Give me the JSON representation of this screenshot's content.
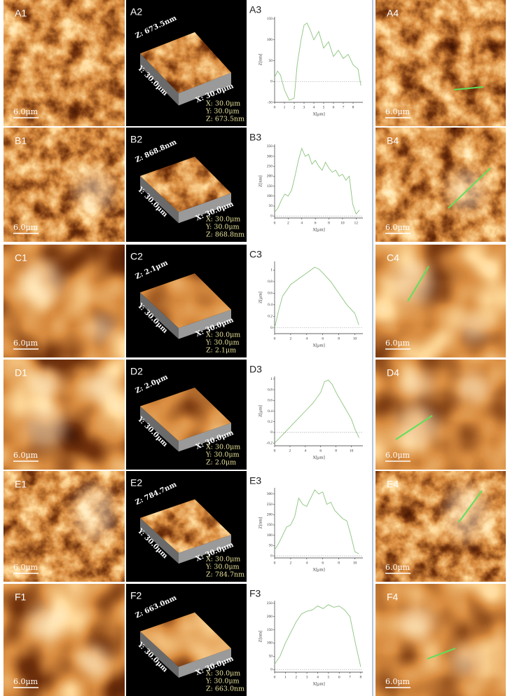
{
  "rows": [
    {
      "labels": [
        "A1",
        "A2",
        "A3",
        "A4"
      ],
      "scale_bar": "6.0μm",
      "z_axis": "Z: 673.5nm",
      "y_axis": "Y: 30.0μm",
      "x_axis": "X: 30.0μm",
      "readout": [
        "X: 30.0μm",
        "Y: 30.0μm",
        "Z: 673.5nm"
      ]
    },
    {
      "labels": [
        "B1",
        "B2",
        "B3",
        "B4"
      ],
      "scale_bar": "6.0μm",
      "z_axis": "Z: 868.8nm",
      "y_axis": "Y: 30.0μm",
      "x_axis": "X: 30.0μm",
      "readout": [
        "X: 30.0μm",
        "Y: 30.0μm",
        "Z: 868.8nm"
      ]
    },
    {
      "labels": [
        "C1",
        "C2",
        "C3",
        "C4"
      ],
      "scale_bar": "6.0μm",
      "z_axis": "Z: 2.1μm",
      "y_axis": "Y: 30.0μm",
      "x_axis": "X: 30.0μm",
      "readout": [
        "X: 30.0μm",
        "Y: 30.0μm",
        "Z: 2.1μm"
      ]
    },
    {
      "labels": [
        "D1",
        "D2",
        "D3",
        "D4"
      ],
      "scale_bar": "6.0μm",
      "z_axis": "Z: 2.0μm",
      "y_axis": "Y: 30.0μm",
      "x_axis": "X: 30.0μm",
      "readout": [
        "X: 30.0μm",
        "Y: 30.0μm",
        "Z: 2.0μm"
      ]
    },
    {
      "labels": [
        "E1",
        "E2",
        "E3",
        "E4"
      ],
      "scale_bar": "6.0μm",
      "z_axis": "Z: 784.7nm",
      "y_axis": "Y: 30.0μm",
      "x_axis": "X: 30.0μm",
      "readout": [
        "X: 30.0μm",
        "Y: 30.0μm",
        "Z: 784.7nm"
      ]
    },
    {
      "labels": [
        "F1",
        "F2",
        "F3",
        "F4"
      ],
      "scale_bar": "6.0μm",
      "z_axis": "Z: 663.0nm",
      "y_axis": "Y: 30.0μm",
      "x_axis": "X: 30.0μm",
      "readout": [
        "X: 30.0μm",
        "Y: 30.0μm",
        "Z: 663.0nm"
      ]
    }
  ],
  "chart_data": [
    {
      "type": "line",
      "x_label": "X[μm]",
      "y_label": "Z[nm]",
      "color": "#8cc47e",
      "x": [
        0,
        0.3,
        0.6,
        1,
        1.5,
        2,
        2.3,
        2.7,
        3,
        3.3,
        3.6,
        4,
        4.5,
        5,
        5.5,
        6,
        6.5,
        7,
        7.5,
        8,
        8.5,
        8.8
      ],
      "values": [
        10,
        25,
        15,
        -20,
        -45,
        -40,
        40,
        100,
        135,
        140,
        125,
        100,
        120,
        80,
        95,
        60,
        75,
        55,
        65,
        40,
        30,
        -10
      ],
      "xlim": [
        0,
        9
      ],
      "xticks": [
        0,
        1,
        2,
        3,
        4,
        5,
        6,
        7,
        8
      ],
      "ylim": [
        -50,
        155
      ],
      "yticks": [
        -50,
        0,
        50,
        100,
        150
      ]
    },
    {
      "type": "line",
      "x_label": "X[μm]",
      "y_label": "Z[nm]",
      "color": "#8cc47e",
      "x": [
        0,
        0.5,
        1,
        1.5,
        2,
        2.5,
        3,
        3.5,
        4,
        4.5,
        5,
        5.5,
        6,
        6.5,
        7,
        7.5,
        8,
        8.5,
        9,
        9.5,
        10,
        10.5,
        11,
        11.5,
        12,
        12.5
      ],
      "values": [
        20,
        40,
        80,
        110,
        100,
        130,
        200,
        280,
        340,
        300,
        310,
        260,
        280,
        250,
        230,
        270,
        240,
        220,
        230,
        200,
        210,
        180,
        200,
        60,
        10,
        30
      ],
      "xlim": [
        0,
        13
      ],
      "xticks": [
        0,
        2,
        4,
        6,
        8,
        10,
        12
      ],
      "ylim": [
        -10,
        360
      ],
      "yticks": [
        0,
        50,
        100,
        150,
        200,
        250,
        300,
        350
      ]
    },
    {
      "type": "line",
      "x_label": "X[μm]",
      "y_label": "Z[μm]",
      "color": "#8cc47e",
      "x": [
        0,
        0.5,
        1,
        2,
        3,
        4,
        5,
        5.5,
        6,
        7,
        8,
        9,
        10,
        10.5
      ],
      "values": [
        0,
        0.3,
        0.55,
        0.75,
        0.85,
        0.95,
        1.05,
        1.02,
        0.95,
        0.8,
        0.6,
        0.4,
        0.25,
        0.05
      ],
      "xlim": [
        0,
        11
      ],
      "xticks": [
        0,
        2,
        4,
        6,
        8,
        10
      ],
      "ylim": [
        -0.1,
        1.15
      ],
      "yticks": [
        0,
        0.2,
        0.4,
        0.6,
        0.8,
        1
      ]
    },
    {
      "type": "line",
      "x_label": "X[μm]",
      "y_label": "Z[μm]",
      "color": "#8cc47e",
      "x": [
        0,
        1,
        2,
        3,
        4,
        5,
        6,
        6.5,
        7,
        7.5,
        8,
        9,
        10,
        10.5,
        11
      ],
      "values": [
        -0.2,
        -0.05,
        0.1,
        0.25,
        0.4,
        0.55,
        0.75,
        0.95,
        0.98,
        0.9,
        0.75,
        0.5,
        0.25,
        0.05,
        -0.1
      ],
      "xlim": [
        0,
        11.5
      ],
      "xticks": [
        0,
        2,
        4,
        6,
        8,
        10
      ],
      "ylim": [
        -0.25,
        1.05
      ],
      "yticks": [
        -0.2,
        0,
        0.2,
        0.4,
        0.6,
        0.8,
        1
      ]
    },
    {
      "type": "line",
      "x_label": "X[μm]",
      "y_label": "Z[nm]",
      "color": "#8cc47e",
      "x": [
        0,
        0.5,
        1,
        1.5,
        2,
        2.5,
        3,
        3.5,
        4,
        4.5,
        5,
        5.5,
        6,
        6.5,
        7,
        7.5,
        8,
        8.5,
        9,
        9.5,
        10,
        10.5
      ],
      "values": [
        30,
        60,
        100,
        140,
        150,
        190,
        280,
        250,
        240,
        280,
        320,
        300,
        310,
        250,
        260,
        220,
        200,
        180,
        170,
        100,
        20,
        10
      ],
      "xlim": [
        0,
        11
      ],
      "xticks": [
        0,
        2,
        4,
        6,
        8,
        10
      ],
      "ylim": [
        -10,
        330
      ],
      "yticks": [
        0,
        50,
        100,
        150,
        200,
        250,
        300
      ]
    },
    {
      "type": "line",
      "x_label": "X[μm]",
      "y_label": "Z[nm]",
      "color": "#8cc47e",
      "x": [
        0,
        0.5,
        1,
        1.5,
        2,
        2.5,
        3,
        3.5,
        4,
        4.5,
        5,
        5.5,
        6,
        6.5,
        7,
        7.5,
        8
      ],
      "values": [
        20,
        50,
        100,
        140,
        180,
        210,
        220,
        225,
        240,
        230,
        245,
        235,
        240,
        225,
        200,
        100,
        10
      ],
      "xlim": [
        0,
        8.2
      ],
      "xticks": [
        0,
        1,
        2,
        3,
        4,
        5,
        6,
        7,
        8
      ],
      "ylim": [
        -10,
        260
      ],
      "yticks": [
        0,
        50,
        100,
        150,
        200,
        250
      ]
    }
  ]
}
